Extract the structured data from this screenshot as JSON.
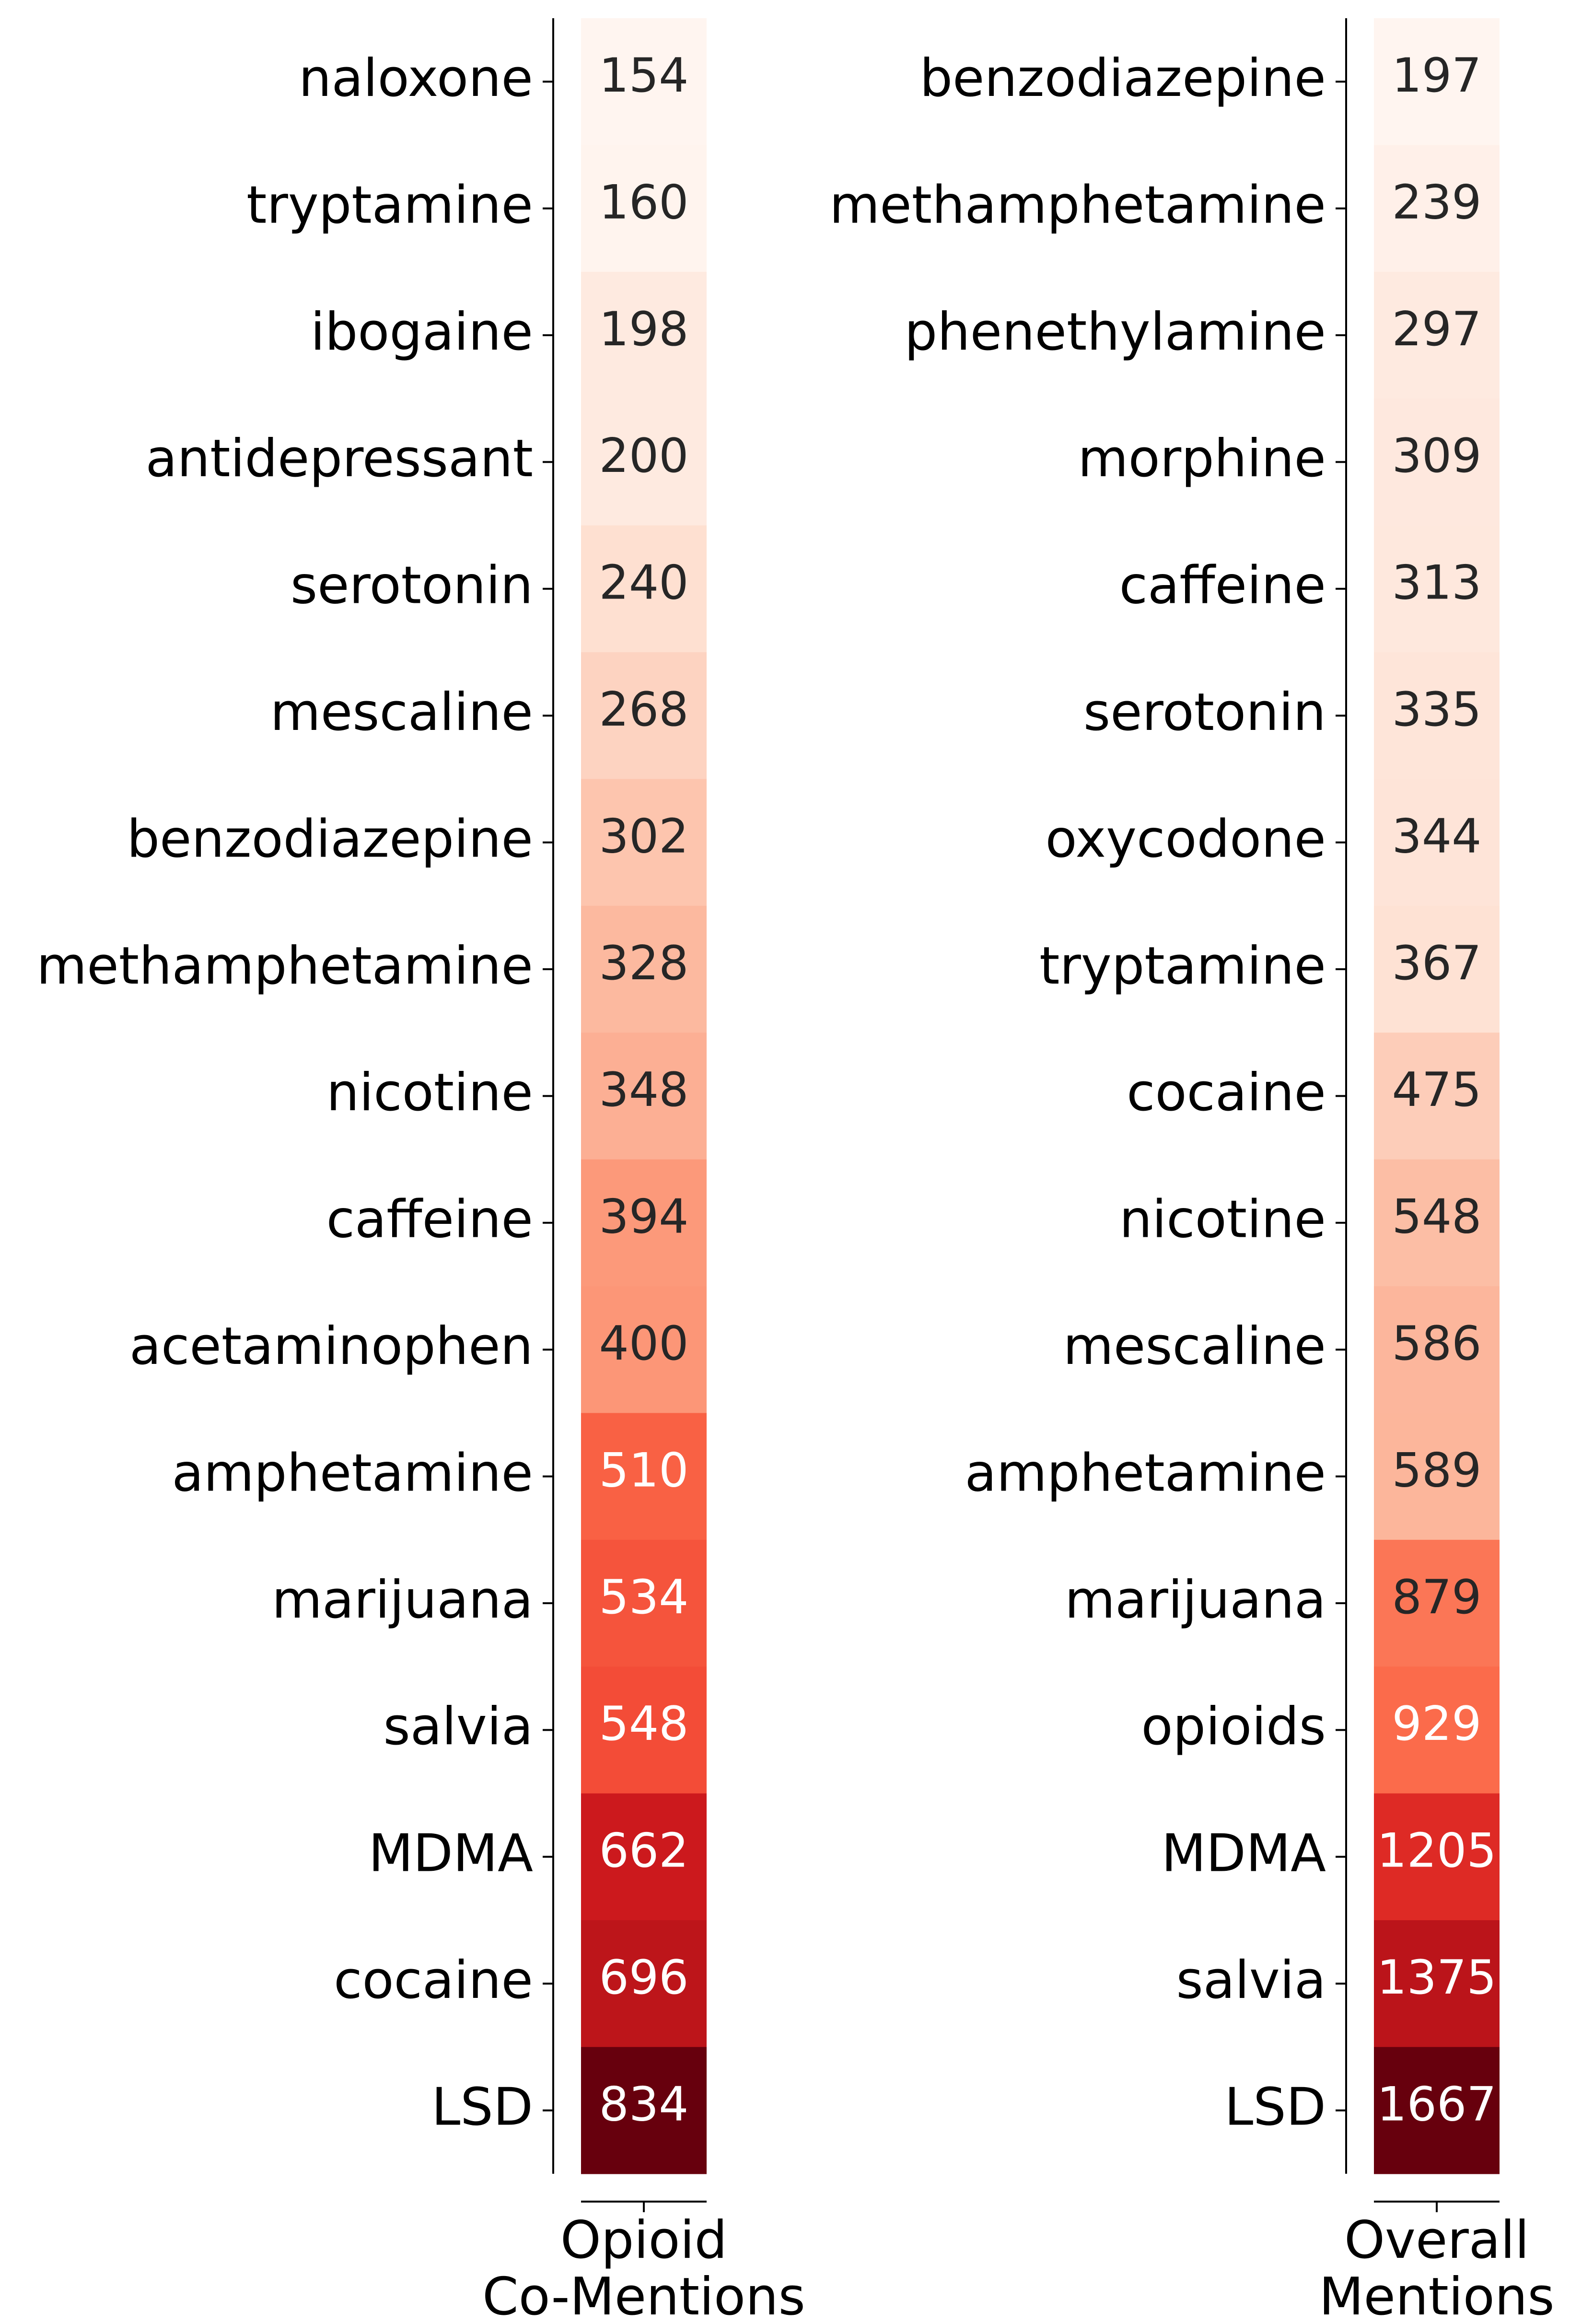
{
  "chart_data": [
    {
      "type": "heatmap",
      "colormap": "Reds",
      "xlabel_lines": [
        "Opioid",
        "Co-Mentions"
      ],
      "rows": [
        {
          "label": "naloxone",
          "value": 154
        },
        {
          "label": "tryptamine",
          "value": 160
        },
        {
          "label": "ibogaine",
          "value": 198
        },
        {
          "label": "antidepressant",
          "value": 200
        },
        {
          "label": "serotonin",
          "value": 240
        },
        {
          "label": "mescaline",
          "value": 268
        },
        {
          "label": "benzodiazepine",
          "value": 302
        },
        {
          "label": "methamphetamine",
          "value": 328
        },
        {
          "label": "nicotine",
          "value": 348
        },
        {
          "label": "caffeine",
          "value": 394
        },
        {
          "label": "acetaminophen",
          "value": 400
        },
        {
          "label": "amphetamine",
          "value": 510
        },
        {
          "label": "marijuana",
          "value": 534
        },
        {
          "label": "salvia",
          "value": 548
        },
        {
          "label": "MDMA",
          "value": 662
        },
        {
          "label": "cocaine",
          "value": 696
        },
        {
          "label": "LSD",
          "value": 834
        }
      ]
    },
    {
      "type": "heatmap",
      "colormap": "Reds",
      "xlabel_lines": [
        "Overall",
        "Mentions"
      ],
      "rows": [
        {
          "label": "benzodiazepine",
          "value": 197
        },
        {
          "label": "methamphetamine",
          "value": 239
        },
        {
          "label": "phenethylamine",
          "value": 297
        },
        {
          "label": "morphine",
          "value": 309
        },
        {
          "label": "caffeine",
          "value": 313
        },
        {
          "label": "serotonin",
          "value": 335
        },
        {
          "label": "oxycodone",
          "value": 344
        },
        {
          "label": "tryptamine",
          "value": 367
        },
        {
          "label": "cocaine",
          "value": 475
        },
        {
          "label": "nicotine",
          "value": 548
        },
        {
          "label": "mescaline",
          "value": 586
        },
        {
          "label": "amphetamine",
          "value": 589
        },
        {
          "label": "marijuana",
          "value": 879
        },
        {
          "label": "opioids",
          "value": 929
        },
        {
          "label": "MDMA",
          "value": 1205
        },
        {
          "label": "salvia",
          "value": 1375
        },
        {
          "label": "LSD",
          "value": 1667
        }
      ]
    }
  ]
}
